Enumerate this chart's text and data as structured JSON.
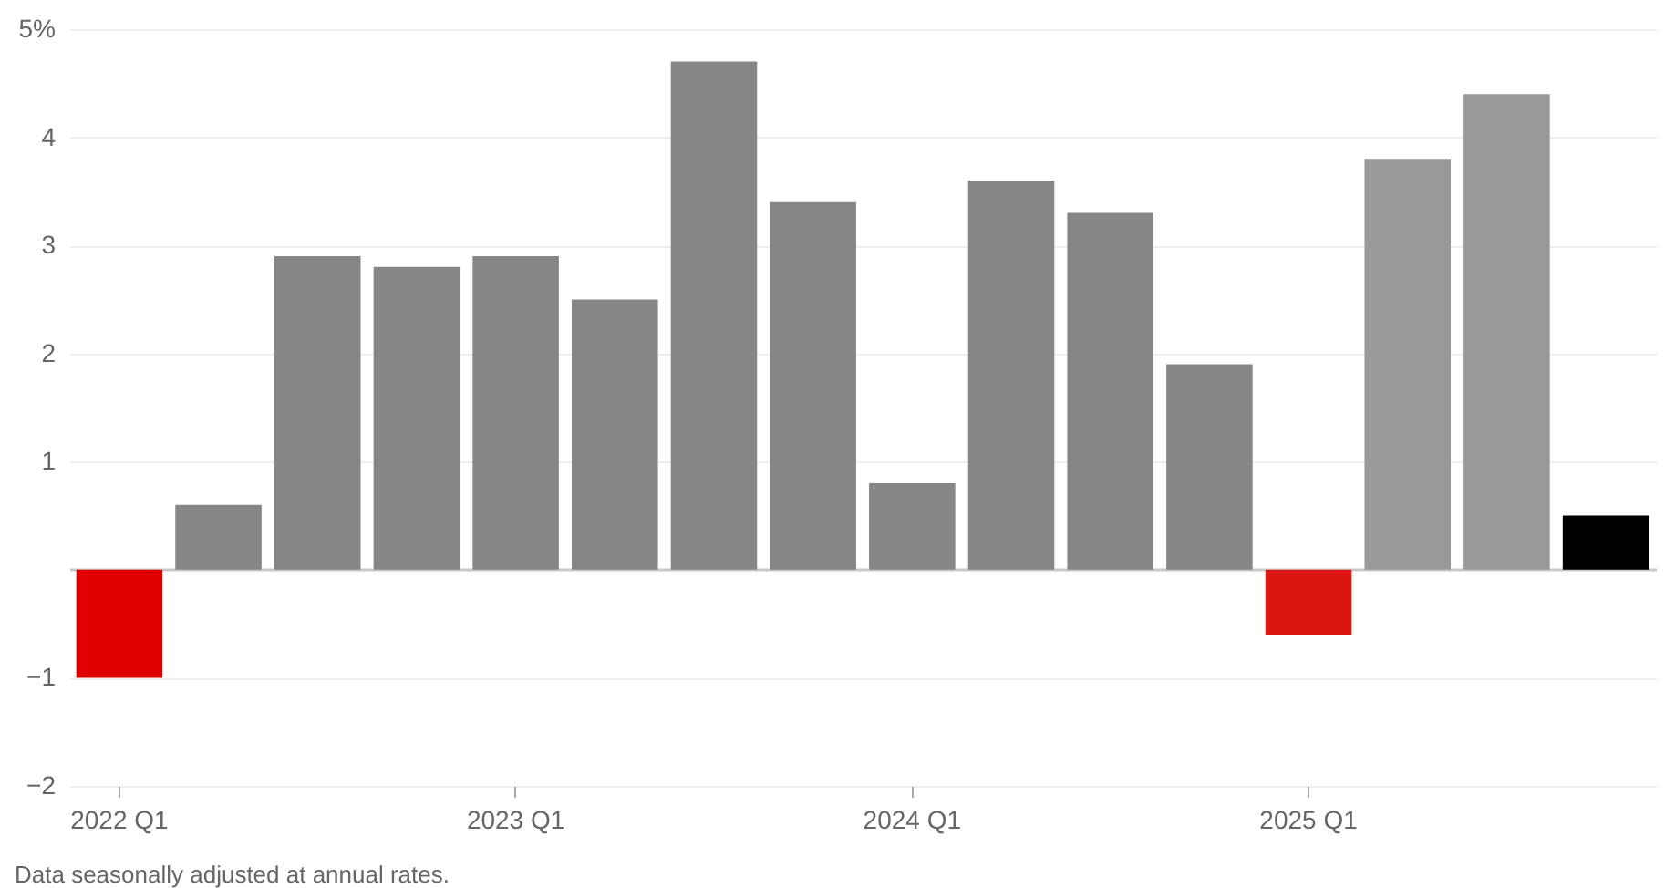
{
  "chart_data": {
    "type": "bar",
    "categories": [
      "2022 Q1",
      null,
      null,
      null,
      "2023 Q1",
      null,
      null,
      null,
      "2024 Q1",
      null,
      null,
      null,
      "2025 Q1",
      null,
      null,
      null
    ],
    "values": [
      -1.0,
      0.6,
      2.9,
      2.8,
      2.9,
      2.5,
      4.7,
      3.4,
      0.8,
      3.6,
      3.3,
      1.9,
      -0.6,
      3.8,
      4.4,
      0.5
    ],
    "colors": [
      "#e00000",
      "#868686",
      "#868686",
      "#868686",
      "#868686",
      "#868686",
      "#868686",
      "#868686",
      "#868686",
      "#868686",
      "#868686",
      "#868686",
      "#d91612",
      "#999999",
      "#999999",
      "#000000"
    ],
    "ylim": [
      -2,
      5
    ],
    "yticks": [
      {
        "value": -2,
        "label": "−2"
      },
      {
        "value": -1,
        "label": "−1"
      },
      {
        "value": 0,
        "label": null
      },
      1,
      2,
      3,
      4,
      {
        "value": 5,
        "label": "5%"
      }
    ],
    "grid": "y",
    "annotations": [
      "Data seasonally adjusted at annual rates."
    ]
  }
}
